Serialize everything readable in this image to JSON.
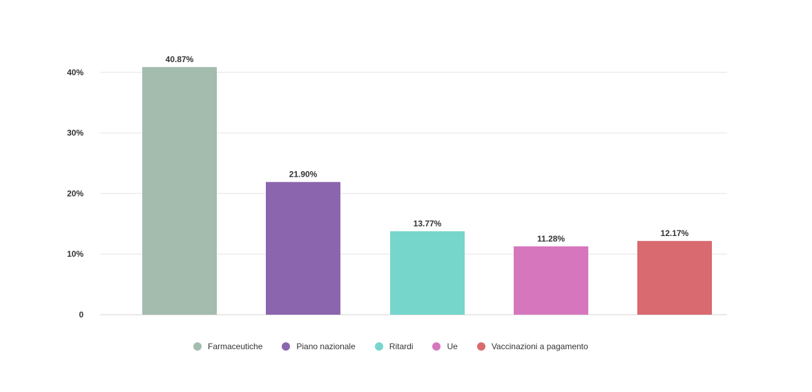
{
  "chart_data": {
    "type": "bar",
    "categories": [
      "Farmaceutiche",
      "Piano nazionale",
      "Ritardi",
      "Ue",
      "Vaccinazioni a pagamento"
    ],
    "values": [
      40.87,
      21.9,
      13.77,
      11.28,
      12.17
    ],
    "data_labels": [
      "40.87%",
      "21.90%",
      "13.77%",
      "11.28%",
      "12.17%"
    ],
    "colors": [
      "#a3bcae",
      "#8b65ae",
      "#76d6cc",
      "#d677bd",
      "#d96a6f"
    ],
    "yticks": [
      {
        "value": 0,
        "label": "0"
      },
      {
        "value": 10,
        "label": "10%"
      },
      {
        "value": 20,
        "label": "20%"
      },
      {
        "value": 30,
        "label": "30%"
      },
      {
        "value": 40,
        "label": "40%"
      }
    ],
    "ylim": [
      0,
      40
    ],
    "grid": true,
    "legend_position": "bottom",
    "title": "",
    "xlabel": "",
    "ylabel": ""
  }
}
